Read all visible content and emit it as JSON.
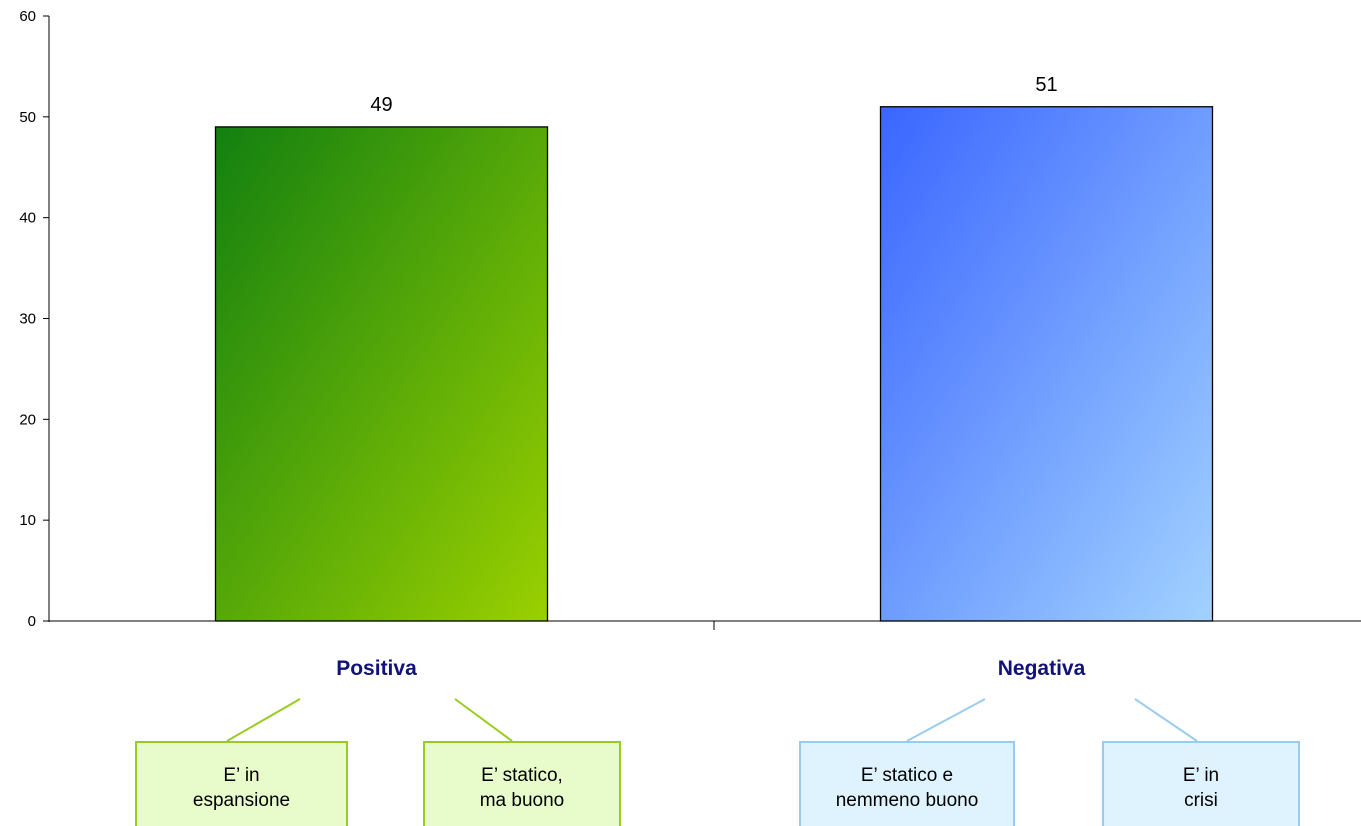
{
  "colors": {
    "positive_dark": "#128010",
    "positive_light": "#9ad000",
    "negative_dark": "#3a66ff",
    "negative_light": "#a2d2ff",
    "category_text": "#12127a",
    "positive_box_fill": "#e8fccb",
    "positive_box_border": "#99cc22",
    "negative_box_fill": "#dff3ff",
    "negative_box_border": "#99ccee"
  },
  "chart_data": {
    "type": "bar",
    "categories": [
      "Positiva",
      "Negativa"
    ],
    "values": [
      49,
      51
    ],
    "data_labels": [
      "49",
      "51"
    ],
    "ylim": [
      0,
      60
    ],
    "yticks": [
      0,
      10,
      20,
      30,
      40,
      50,
      60
    ],
    "grid": false,
    "legend": "none",
    "sub_categories": [
      {
        "parent": "Positiva",
        "labels": [
          "E’ in\nespansione",
          "E’ statico,\nma buono"
        ]
      },
      {
        "parent": "Negativa",
        "labels": [
          "E’ statico e\nnemmeno buono",
          "E’ in\ncrisi"
        ]
      }
    ]
  }
}
